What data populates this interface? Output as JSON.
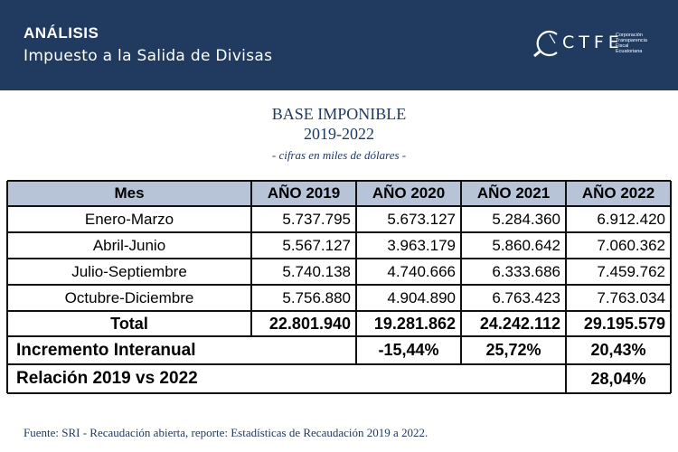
{
  "header": {
    "kicker": "ANÁLISIS",
    "subtitle": "Impuesto a la Salida de Divisas",
    "logo": {
      "word": "CTFE",
      "lines": [
        "Corporación",
        "Transparencia",
        "Fiscal",
        "Ecuatoriana"
      ]
    }
  },
  "title": {
    "line1": "BASE IMPONIBLE",
    "line2": "2019-2022",
    "line3": "- cifras en miles de dólares -"
  },
  "table": {
    "headers": [
      "Mes",
      "AÑO 2019",
      "AÑO 2020",
      "AÑO 2021",
      "AÑO 2022"
    ],
    "rows": [
      [
        "Enero-Marzo",
        "5.737.795",
        "5.673.127",
        "5.284.360",
        "6.912.420"
      ],
      [
        "Abril-Junio",
        "5.567.127",
        "3.963.179",
        "5.860.642",
        "7.060.362"
      ],
      [
        "Julio-Septiembre",
        "5.740.138",
        "4.740.666",
        "6.333.686",
        "7.459.762"
      ],
      [
        "Octubre-Diciembre",
        "5.756.880",
        "4.904.890",
        "6.763.423",
        "7.763.034"
      ]
    ],
    "total": [
      "Total",
      "22.801.940",
      "19.281.862",
      "24.242.112",
      "29.195.579"
    ],
    "incremento": {
      "label": "Incremento Interanual",
      "values": [
        "-15,44%",
        "25,72%",
        "20,43%"
      ]
    },
    "relacion": {
      "label": "Relación 2019 vs 2022",
      "value": "28,04%"
    }
  },
  "footer": {
    "source": "Fuente: SRI - Recaudación abierta, reporte: Estadísticas de Recaudación 2019 a 2022."
  },
  "colors": {
    "navy": "#203a60",
    "table_header_bg": "#b7c4d8"
  }
}
